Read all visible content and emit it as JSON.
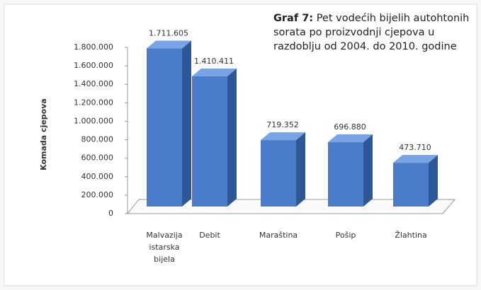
{
  "chart_data": {
    "type": "bar3d",
    "title_label": "Graf 7:",
    "title": "Pet vodećih bijelih autohtonih sorata po proizvodnji cjepova u razdoblju od 2004. do 2010. godine",
    "y_label": "Komada cjepova",
    "categories": [
      "Malvazija istarska bijela",
      "Debit",
      "Maraština",
      "Pošip",
      "Žlahtina"
    ],
    "values": [
      1711605,
      1410411,
      719352,
      696880,
      473710
    ],
    "value_labels": [
      "1.711.605",
      "1.410.411",
      "719.352",
      "696.880",
      "473.710"
    ],
    "color": "#4a7cc9",
    "ylim": [
      0,
      1800000
    ],
    "yticks": [
      0,
      {
        "value": 200000,
        "label": "200.000"
      },
      {
        "value": 400000,
        "label": "400.000"
      },
      {
        "value": 600000,
        "label": "600.000"
      },
      {
        "value": 800000,
        "label": "800.000"
      },
      {
        "value": 1000000,
        "label": "1.000.000"
      },
      {
        "value": 1200000,
        "label": "1.200.000"
      },
      {
        "value": 1400000,
        "label": "1.400.000"
      },
      {
        "value": 1600000,
        "label": "1.600.000"
      },
      {
        "value": 1800000,
        "label": "1.800.000"
      }
    ],
    "grid": false
  }
}
